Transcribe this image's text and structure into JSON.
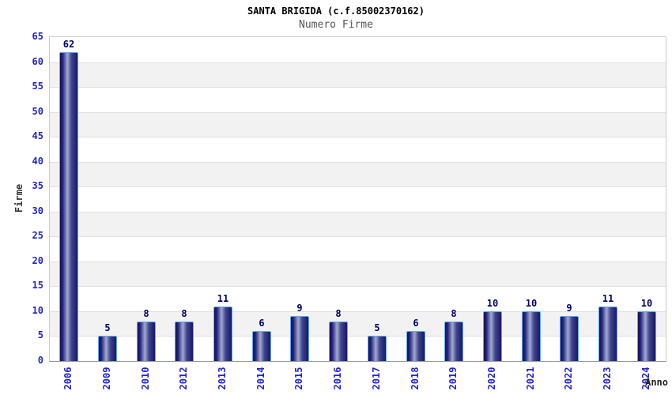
{
  "chart_data": {
    "type": "bar",
    "title": "SANTA BRIGIDA (c.f.85002370162)",
    "subtitle": "Numero Firme",
    "xlabel": "Anno",
    "ylabel": "Firme",
    "categories": [
      "2006",
      "2009",
      "2010",
      "2012",
      "2013",
      "2014",
      "2015",
      "2016",
      "2017",
      "2018",
      "2019",
      "2020",
      "2021",
      "2022",
      "2023",
      "2024"
    ],
    "values": [
      62,
      5,
      8,
      8,
      11,
      6,
      9,
      8,
      5,
      6,
      8,
      10,
      10,
      9,
      11,
      10
    ],
    "ylim": [
      0,
      65
    ],
    "ytick_step": 5,
    "grid": true,
    "legend": false,
    "band_fill": "alternating horizontal bands",
    "colors": {
      "bar_dark": "#181865",
      "bar_light": "#a2aace",
      "bar_border": "#5fa8f5",
      "tick_label": "#2323cc",
      "value_label": "#000066",
      "band_gray": "#f2f2f2",
      "band_white": "#ffffff",
      "gridline": "#e0e0e0",
      "plot_border": "#cccccc",
      "axis_line": "#999999",
      "title": "#000000",
      "subtitle": "#555555"
    }
  }
}
